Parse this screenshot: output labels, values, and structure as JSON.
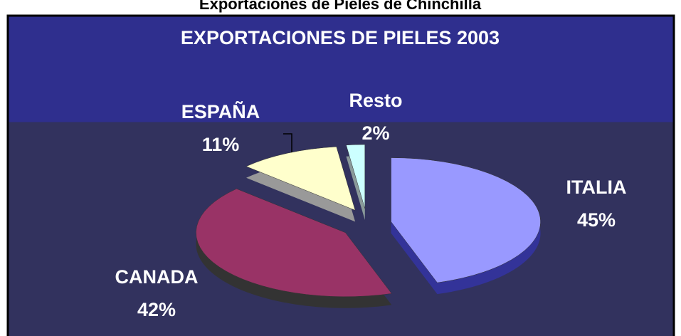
{
  "page_title": "Exportaciones de Pieles de Chinchilla",
  "chart_data": {
    "type": "pie",
    "title": "EXPORTACIONES DE PIELES 2003",
    "categories": [
      "ITALIA",
      "CANADA",
      "ESPAÑA",
      "Resto"
    ],
    "values": [
      45,
      42,
      11,
      2
    ],
    "value_labels": [
      "45%",
      "42%",
      "11%",
      "2%"
    ],
    "colors": [
      "#9999ff",
      "#993366",
      "#ffffcc",
      "#ccffff"
    ]
  }
}
